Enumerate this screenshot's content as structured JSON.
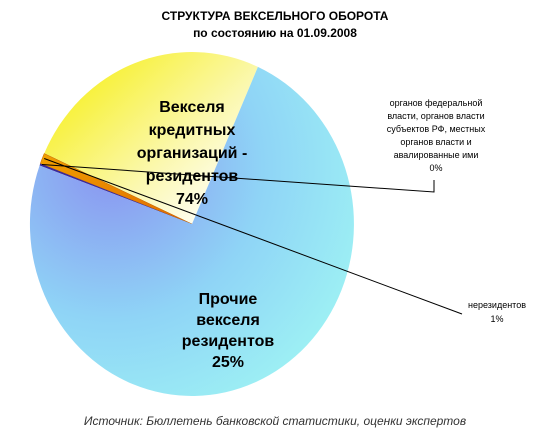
{
  "chart_data": {
    "type": "pie",
    "title": "СТРУКТУРА ВЕКСЕЛЬНОГО ОБОРОТА",
    "subtitle": "по состоянию на 01.09.2008",
    "slices": [
      {
        "label_lines": [
          "Векселя",
          "кредитных",
          "организаций -",
          "резидентов"
        ],
        "value_label": "74%",
        "value": 74,
        "color": "#7fd8f4"
      },
      {
        "label_lines": [
          "Прочие",
          "векселя",
          "резидентов"
        ],
        "value_label": "25%",
        "value": 25,
        "color": "#f5f060"
      },
      {
        "label_lines": [
          "нерезидентов"
        ],
        "value_label": "1%",
        "value": 1,
        "color": "#e88a00"
      },
      {
        "label_lines": [
          "органов федеральной",
          "власти, органов власти",
          "субъектов РФ, местных",
          "органов власти и",
          "авалированные ими"
        ],
        "value_label": "0%",
        "value": 0.2,
        "color": "#3a2a9a"
      }
    ],
    "source": "Источник: Бюллетень банковской статистики, оценки экспертов"
  }
}
